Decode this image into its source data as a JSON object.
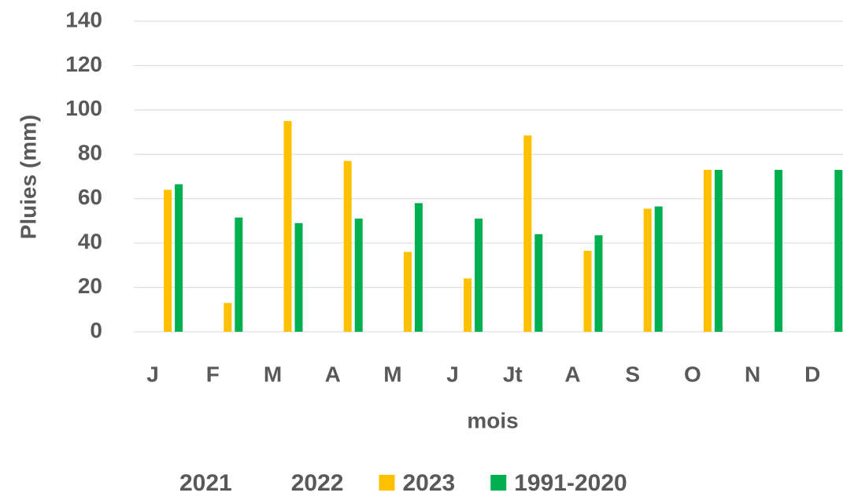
{
  "chart_data": {
    "type": "bar",
    "y_label": "Pluies (mm)",
    "x_label": "mois",
    "categories": [
      "J",
      "F",
      "M",
      "A",
      "M",
      "J",
      "Jt",
      "A",
      "S",
      "O",
      "N",
      "D"
    ],
    "series": [
      {
        "name": "2021",
        "color": "#ffffff",
        "values": [
          null,
          null,
          null,
          null,
          null,
          null,
          null,
          null,
          null,
          null,
          null,
          null
        ]
      },
      {
        "name": "2022",
        "color": "#ffffff",
        "values": [
          null,
          null,
          null,
          null,
          null,
          null,
          null,
          null,
          null,
          null,
          null,
          null
        ]
      },
      {
        "name": "2023",
        "color": "#ffc000",
        "values": [
          64,
          13,
          95,
          77,
          36,
          24,
          88.5,
          36.5,
          55.5,
          73,
          null,
          null
        ]
      },
      {
        "name": "1991-2020",
        "color": "#00b050",
        "values": [
          66.5,
          51.5,
          49,
          51,
          58,
          51,
          44,
          43.5,
          56.5,
          73,
          73,
          73
        ]
      }
    ],
    "ylim": [
      0,
      140
    ],
    "yticks": [
      0,
      20,
      40,
      60,
      80,
      100,
      120,
      140
    ],
    "grid": true
  }
}
